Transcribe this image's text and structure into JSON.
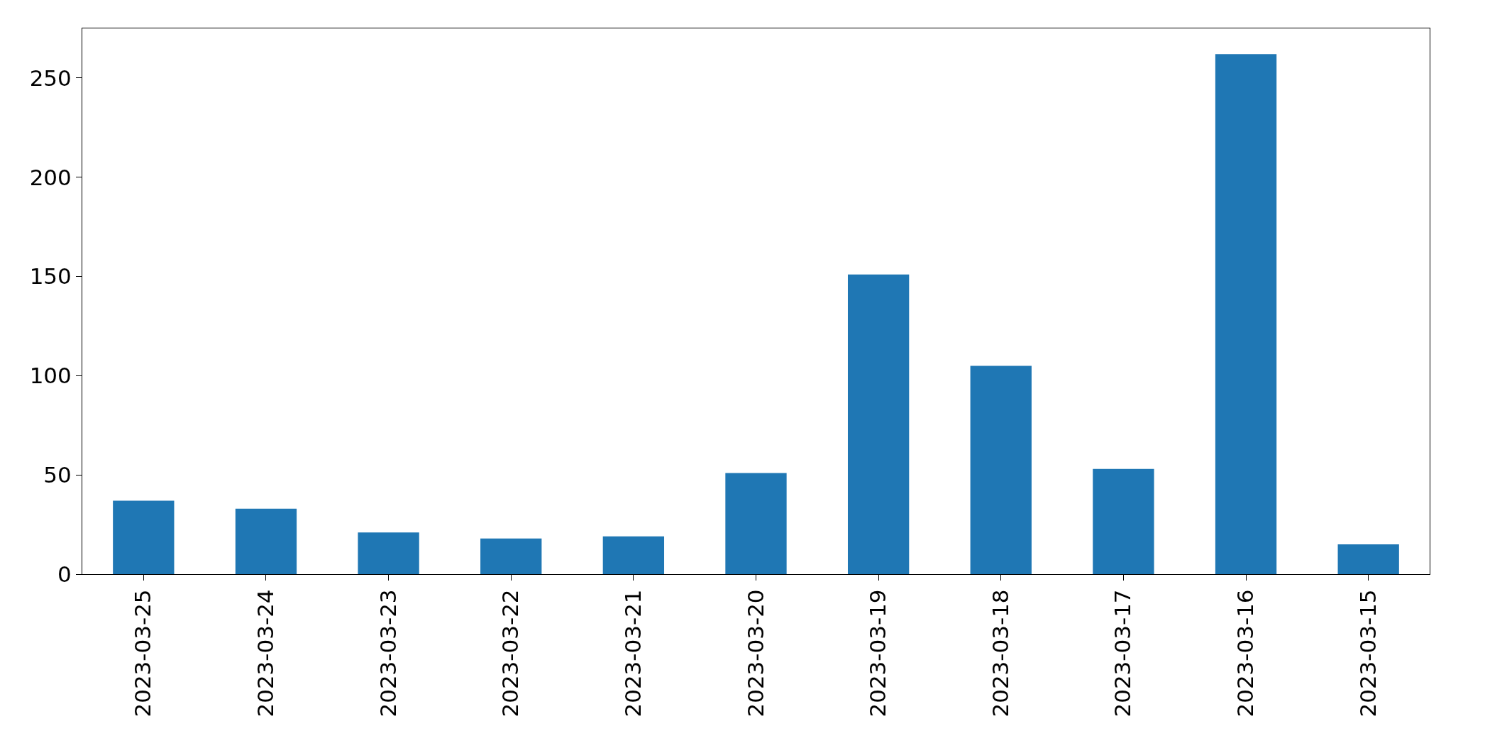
{
  "chart_data": {
    "type": "bar",
    "categories": [
      "2023-03-25",
      "2023-03-24",
      "2023-03-23",
      "2023-03-22",
      "2023-03-21",
      "2023-03-20",
      "2023-03-19",
      "2023-03-18",
      "2023-03-17",
      "2023-03-16",
      "2023-03-15"
    ],
    "values": [
      37,
      33,
      21,
      18,
      19,
      51,
      151,
      105,
      53,
      262,
      15
    ],
    "color": "#1f77b4",
    "ylim": [
      0,
      275
    ],
    "yticks": [
      0,
      50,
      100,
      150,
      200,
      250
    ],
    "grid": false,
    "legend": false
  }
}
